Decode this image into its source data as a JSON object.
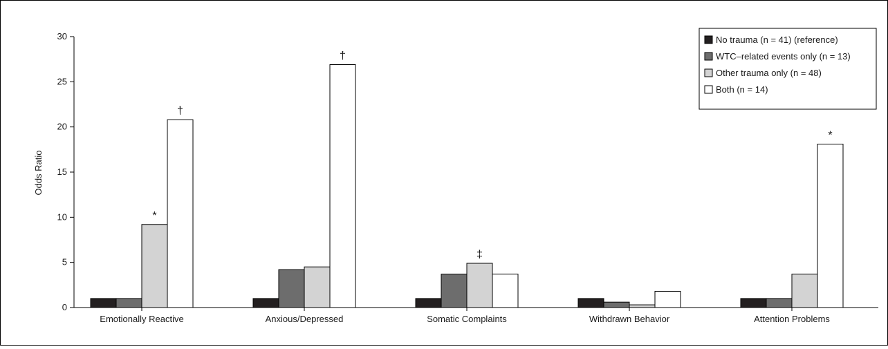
{
  "chart_data": {
    "type": "bar",
    "ylabel": "Odds Ratio",
    "xlabel": "",
    "ylim": [
      0,
      30
    ],
    "yticks": [
      0,
      5,
      10,
      15,
      20,
      25,
      30
    ],
    "grid": false,
    "legend_position": "top-right",
    "categories": [
      "Emotionally Reactive",
      "Anxious/Depressed",
      "Somatic Complaints",
      "Withdrawn Behavior",
      "Attention Problems"
    ],
    "series": [
      {
        "name": "No trauma (n = 41) (reference)",
        "color": "#231f20",
        "values": [
          1.0,
          1.0,
          1.0,
          1.0,
          1.0
        ],
        "markers": [
          "",
          "",
          "",
          "",
          ""
        ]
      },
      {
        "name": "WTC–related events only (n = 13)",
        "color": "#6d6d6d",
        "values": [
          1.0,
          4.2,
          3.7,
          0.6,
          1.0
        ],
        "markers": [
          "",
          "",
          "",
          "",
          ""
        ]
      },
      {
        "name": "Other trauma only (n = 48)",
        "color": "#d3d3d3",
        "values": [
          9.2,
          4.5,
          4.9,
          0.3,
          3.7
        ],
        "markers": [
          "*",
          "",
          "‡",
          "",
          ""
        ]
      },
      {
        "name": "Both (n = 14)",
        "color": "#ffffff",
        "values": [
          20.8,
          26.9,
          3.7,
          1.8,
          18.1
        ],
        "markers": [
          "†",
          "†",
          "",
          "",
          "*"
        ]
      }
    ]
  }
}
